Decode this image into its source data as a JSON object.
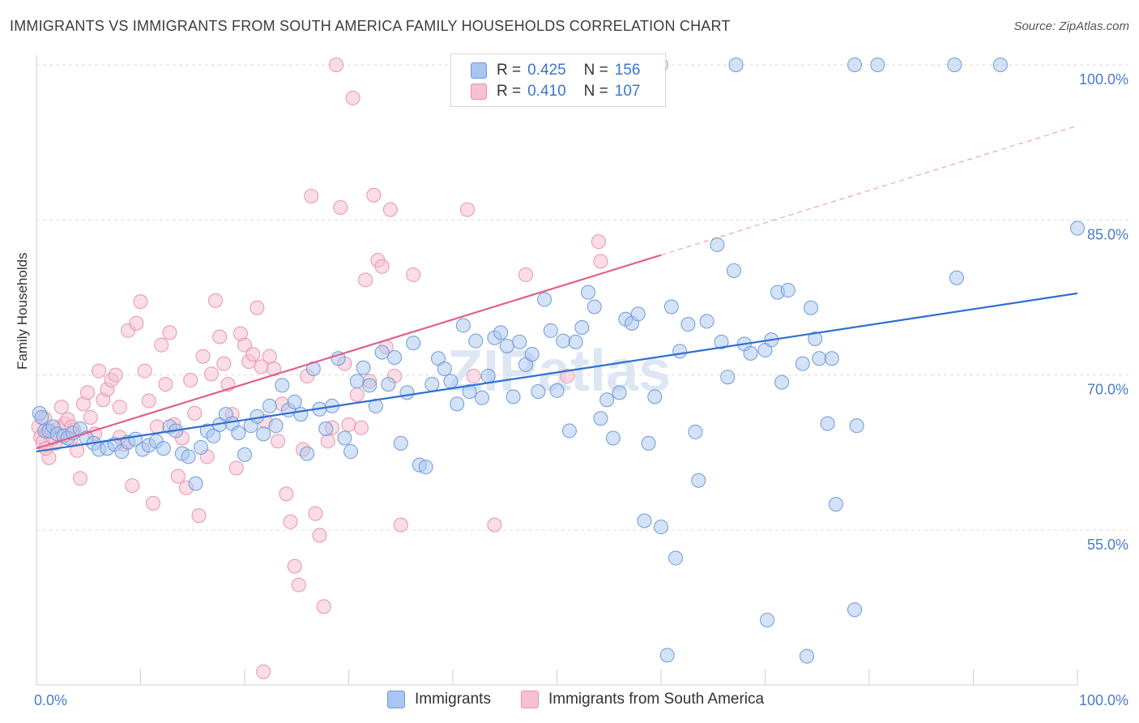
{
  "title": "IMMIGRANTS VS IMMIGRANTS FROM SOUTH AMERICA FAMILY HOUSEHOLDS CORRELATION CHART",
  "source": "Source: ZipAtlas.com",
  "watermark": "ZIPatlas",
  "legend": {
    "rows": [
      {
        "r_label": "R =",
        "r_value": "0.425",
        "n_label": "N =",
        "n_value": "156"
      },
      {
        "r_label": "R =",
        "r_value": "0.410",
        "n_label": "N =",
        "n_value": "107"
      }
    ]
  },
  "bottom_legend": [
    "Immigrants",
    "Immigrants from South America"
  ],
  "chart_data": {
    "type": "scatter",
    "title": "IMMIGRANTS VS IMMIGRANTS FROM SOUTH AMERICA FAMILY HOUSEHOLDS CORRELATION CHART",
    "xlabel": "",
    "ylabel": "Family Households",
    "xlim": [
      0,
      100
    ],
    "ylim": [
      40,
      101.5
    ],
    "x_tick_labels": [
      "0.0%",
      "100.0%"
    ],
    "y_ticks": [
      55,
      70,
      85,
      100
    ],
    "y_tick_labels": [
      "55.0%",
      "70.0%",
      "85.0%",
      "100.0%"
    ],
    "grid": true,
    "legend_position": "top-center",
    "colors": {
      "immigrants_fill": "#a9c6f0",
      "immigrants_stroke": "#6e9ad8",
      "immigrants_line": "#2f6fd1",
      "south_america_fill": "#f6c1d1",
      "south_america_stroke": "#e893ae",
      "south_america_line": "#e0608a",
      "tick_text": "#4a7cc9",
      "grid": "#dcdcdc"
    },
    "series": [
      {
        "name": "Immigrants",
        "trend": {
          "x": [
            0,
            100
          ],
          "y": [
            62.6,
            77.9
          ]
        },
        "points": [
          [
            0.3,
            66.3
          ],
          [
            0.5,
            65.9
          ],
          [
            0.8,
            64.6
          ],
          [
            1.2,
            64.6
          ],
          [
            1.6,
            65.0
          ],
          [
            2.0,
            64.3
          ],
          [
            2.6,
            64.1
          ],
          [
            3.0,
            63.9
          ],
          [
            3.5,
            64.4
          ],
          [
            4.2,
            64.8
          ],
          [
            4.8,
            63.9
          ],
          [
            5.5,
            63.4
          ],
          [
            6.0,
            62.8
          ],
          [
            6.8,
            62.9
          ],
          [
            7.5,
            63.3
          ],
          [
            8.2,
            62.6
          ],
          [
            8.8,
            63.5
          ],
          [
            9.5,
            63.8
          ],
          [
            10.2,
            62.8
          ],
          [
            10.8,
            63.2
          ],
          [
            11.5,
            63.6
          ],
          [
            12.2,
            62.9
          ],
          [
            12.8,
            65.0
          ],
          [
            13.4,
            64.6
          ],
          [
            14.0,
            62.4
          ],
          [
            14.6,
            62.1
          ],
          [
            15.3,
            59.5
          ],
          [
            15.8,
            63.0
          ],
          [
            16.4,
            64.6
          ],
          [
            17.0,
            64.1
          ],
          [
            17.6,
            65.2
          ],
          [
            18.2,
            66.2
          ],
          [
            18.8,
            65.3
          ],
          [
            19.4,
            64.4
          ],
          [
            20.0,
            62.3
          ],
          [
            20.6,
            65.1
          ],
          [
            21.2,
            66.0
          ],
          [
            21.8,
            64.3
          ],
          [
            22.4,
            67.0
          ],
          [
            23.0,
            65.1
          ],
          [
            23.6,
            69.0
          ],
          [
            24.2,
            66.6
          ],
          [
            24.8,
            67.4
          ],
          [
            25.4,
            66.2
          ],
          [
            26.0,
            62.4
          ],
          [
            26.6,
            70.6
          ],
          [
            27.2,
            66.7
          ],
          [
            27.8,
            64.8
          ],
          [
            28.4,
            67.0
          ],
          [
            29.0,
            71.6
          ],
          [
            29.6,
            63.9
          ],
          [
            30.2,
            62.6
          ],
          [
            30.8,
            69.4
          ],
          [
            31.4,
            70.7
          ],
          [
            32.0,
            69.0
          ],
          [
            32.6,
            67.0
          ],
          [
            33.2,
            72.2
          ],
          [
            33.8,
            69.1
          ],
          [
            34.4,
            71.7
          ],
          [
            35.0,
            63.4
          ],
          [
            35.6,
            68.3
          ],
          [
            36.2,
            73.1
          ],
          [
            36.8,
            61.3
          ],
          [
            37.4,
            61.1
          ],
          [
            38.0,
            69.1
          ],
          [
            38.6,
            71.6
          ],
          [
            39.2,
            70.6
          ],
          [
            39.8,
            69.4
          ],
          [
            40.4,
            67.2
          ],
          [
            41.0,
            74.8
          ],
          [
            41.6,
            68.4
          ],
          [
            42.2,
            73.3
          ],
          [
            42.8,
            67.8
          ],
          [
            43.4,
            69.9
          ],
          [
            44.0,
            73.6
          ],
          [
            44.6,
            74.1
          ],
          [
            45.2,
            72.8
          ],
          [
            45.8,
            67.9
          ],
          [
            46.4,
            73.2
          ],
          [
            47.0,
            71.0
          ],
          [
            47.6,
            72.0
          ],
          [
            48.2,
            68.4
          ],
          [
            48.8,
            77.3
          ],
          [
            49.4,
            74.3
          ],
          [
            50.0,
            68.5
          ],
          [
            50.6,
            73.3
          ],
          [
            51.2,
            64.6
          ],
          [
            51.8,
            73.2
          ],
          [
            52.4,
            74.6
          ],
          [
            53.0,
            78.0
          ],
          [
            53.6,
            76.6
          ],
          [
            54.2,
            65.8
          ],
          [
            54.8,
            67.6
          ],
          [
            55.4,
            63.9
          ],
          [
            56.0,
            68.3
          ],
          [
            56.6,
            75.4
          ],
          [
            57.2,
            75.0
          ],
          [
            57.8,
            75.9
          ],
          [
            58.4,
            55.9
          ],
          [
            58.8,
            63.4
          ],
          [
            59.4,
            67.9
          ],
          [
            60.0,
            55.3
          ],
          [
            60.6,
            42.9
          ],
          [
            61.0,
            76.6
          ],
          [
            61.4,
            52.3
          ],
          [
            61.8,
            72.3
          ],
          [
            62.6,
            74.9
          ],
          [
            63.3,
            64.5
          ],
          [
            63.6,
            59.8
          ],
          [
            64.4,
            75.2
          ],
          [
            65.4,
            82.6
          ],
          [
            65.8,
            73.2
          ],
          [
            66.4,
            69.8
          ],
          [
            67.0,
            80.1
          ],
          [
            68.0,
            73.0
          ],
          [
            68.6,
            72.1
          ],
          [
            67.2,
            100.0
          ],
          [
            70.0,
            72.4
          ],
          [
            70.6,
            73.4
          ],
          [
            70.2,
            46.3
          ],
          [
            71.2,
            78.0
          ],
          [
            71.6,
            69.3
          ],
          [
            72.2,
            78.2
          ],
          [
            73.6,
            71.1
          ],
          [
            74.0,
            42.8
          ],
          [
            74.4,
            76.5
          ],
          [
            74.8,
            73.5
          ],
          [
            75.2,
            71.6
          ],
          [
            76.0,
            65.3
          ],
          [
            76.4,
            71.6
          ],
          [
            76.8,
            57.5
          ],
          [
            78.6,
            100.0
          ],
          [
            78.6,
            47.3
          ],
          [
            78.8,
            65.1
          ],
          [
            80.8,
            100.0
          ],
          [
            88.2,
            100.0
          ],
          [
            88.4,
            79.4
          ],
          [
            92.6,
            100.0
          ],
          [
            100.0,
            84.2
          ]
        ]
      },
      {
        "name": "Immigrants from South America",
        "trend": {
          "x": [
            0,
            60
          ],
          "y": [
            62.9,
            81.6
          ]
        },
        "trend_extension": {
          "x": [
            60,
            100
          ],
          "y": [
            81.6,
            94.1
          ]
        },
        "points": [
          [
            0.2,
            65.0
          ],
          [
            0.4,
            64.0
          ],
          [
            0.6,
            63.5
          ],
          [
            0.8,
            65.8
          ],
          [
            1.0,
            64.5
          ],
          [
            1.2,
            62.0
          ],
          [
            1.5,
            64.5
          ],
          [
            1.8,
            63.4
          ],
          [
            2.1,
            64.9
          ],
          [
            2.4,
            66.9
          ],
          [
            2.7,
            65.3
          ],
          [
            3.0,
            65.7
          ],
          [
            3.3,
            63.8
          ],
          [
            3.6,
            64.7
          ],
          [
            3.9,
            62.7
          ],
          [
            4.2,
            60.0
          ],
          [
            4.5,
            67.2
          ],
          [
            4.9,
            68.3
          ],
          [
            5.2,
            65.9
          ],
          [
            5.6,
            64.3
          ],
          [
            6.0,
            70.4
          ],
          [
            6.4,
            67.6
          ],
          [
            6.8,
            68.6
          ],
          [
            7.2,
            69.5
          ],
          [
            7.6,
            70.0
          ],
          [
            8.0,
            66.9
          ],
          [
            8.4,
            63.3
          ],
          [
            8.8,
            74.3
          ],
          [
            9.2,
            59.3
          ],
          [
            9.6,
            75.0
          ],
          [
            10.0,
            77.1
          ],
          [
            10.4,
            70.4
          ],
          [
            10.8,
            67.5
          ],
          [
            11.2,
            57.6
          ],
          [
            11.6,
            65.0
          ],
          [
            12.0,
            72.9
          ],
          [
            12.4,
            69.1
          ],
          [
            12.8,
            74.1
          ],
          [
            13.2,
            65.2
          ],
          [
            13.6,
            60.2
          ],
          [
            14.0,
            63.9
          ],
          [
            14.4,
            59.1
          ],
          [
            14.8,
            69.5
          ],
          [
            15.2,
            66.3
          ],
          [
            15.6,
            56.4
          ],
          [
            16.0,
            71.8
          ],
          [
            16.4,
            62.1
          ],
          [
            16.8,
            70.1
          ],
          [
            17.2,
            77.2
          ],
          [
            17.6,
            73.7
          ],
          [
            18.0,
            71.1
          ],
          [
            18.4,
            69.1
          ],
          [
            18.8,
            66.2
          ],
          [
            19.2,
            61.0
          ],
          [
            19.6,
            74.0
          ],
          [
            20.0,
            72.9
          ],
          [
            20.4,
            71.3
          ],
          [
            20.8,
            72.0
          ],
          [
            21.2,
            76.5
          ],
          [
            21.6,
            70.8
          ],
          [
            22.0,
            65.5
          ],
          [
            22.4,
            71.8
          ],
          [
            22.8,
            70.6
          ],
          [
            23.2,
            63.6
          ],
          [
            23.6,
            67.2
          ],
          [
            24.0,
            58.5
          ],
          [
            24.4,
            55.8
          ],
          [
            24.8,
            51.5
          ],
          [
            25.2,
            49.7
          ],
          [
            25.6,
            62.8
          ],
          [
            26.0,
            69.9
          ],
          [
            26.4,
            87.3
          ],
          [
            26.8,
            56.6
          ],
          [
            27.2,
            54.5
          ],
          [
            27.6,
            47.6
          ],
          [
            28.0,
            63.6
          ],
          [
            28.4,
            64.9
          ],
          [
            28.8,
            100.0
          ],
          [
            29.2,
            86.2
          ],
          [
            29.6,
            71.1
          ],
          [
            30.0,
            65.2
          ],
          [
            30.4,
            96.8
          ],
          [
            30.8,
            68.1
          ],
          [
            31.2,
            64.9
          ],
          [
            31.6,
            79.2
          ],
          [
            32.0,
            69.4
          ],
          [
            32.4,
            87.4
          ],
          [
            32.8,
            81.1
          ],
          [
            33.2,
            80.5
          ],
          [
            33.6,
            72.7
          ],
          [
            34.0,
            86.0
          ],
          [
            34.4,
            69.9
          ],
          [
            35.0,
            55.5
          ],
          [
            36.2,
            79.7
          ],
          [
            41.4,
            86.0
          ],
          [
            42.0,
            69.9
          ],
          [
            44.0,
            55.5
          ],
          [
            47.0,
            79.7
          ],
          [
            51.0,
            69.9
          ],
          [
            54.0,
            82.9
          ],
          [
            54.2,
            81.0
          ],
          [
            60.0,
            100.0
          ],
          [
            21.8,
            41.3
          ],
          [
            8.0,
            64.0
          ],
          [
            3.4,
            65.0
          ],
          [
            1.6,
            63.9
          ],
          [
            0.9,
            62.9
          ]
        ]
      }
    ]
  }
}
